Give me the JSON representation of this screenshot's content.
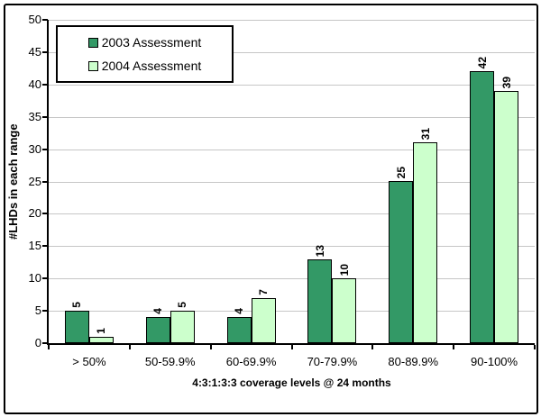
{
  "chart_data": {
    "type": "bar",
    "title": "",
    "categories": [
      "> 50%",
      "50-59.9%",
      "60-69.9%",
      "70-79.9%",
      "80-89.9%",
      "90-100%"
    ],
    "series": [
      {
        "name": "2003 Assessment",
        "color": "#339966",
        "values": [
          5,
          4,
          4,
          13,
          25,
          42
        ]
      },
      {
        "name": "2004 Assessment",
        "color": "#CCFFCC",
        "values": [
          1,
          5,
          7,
          10,
          31,
          39
        ]
      }
    ],
    "xlabel": "4:3:1:3:3 coverage levels @ 24 months",
    "ylabel": "#LHDs in each range",
    "ylim": [
      0,
      50
    ],
    "yticks": [
      0,
      5,
      10,
      15,
      20,
      25,
      30,
      35,
      40,
      45,
      50
    ],
    "grid": true,
    "data_labels": "rotated-vertical",
    "legend_position": "top-left",
    "colors": {
      "gridline": "#c6c6c6",
      "axis": "#000000",
      "plot_background": "#ffffff",
      "page_background": "#ffffff",
      "bar_border": "#000000",
      "frame_border": "#000000"
    }
  }
}
